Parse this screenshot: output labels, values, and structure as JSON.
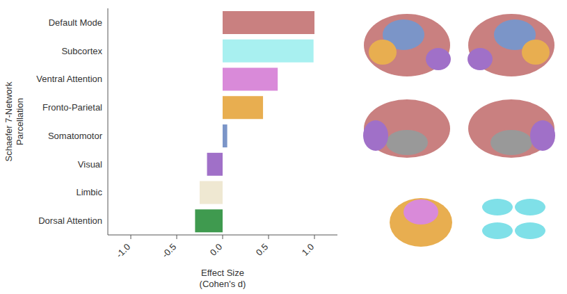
{
  "chart_data": {
    "type": "bar",
    "orientation": "horizontal",
    "x_label": "Effect Size (Cohen's d)",
    "y_label": "Schaefer 7-Network Parcellation",
    "categories": [
      "Default Mode",
      "Subcortex",
      "Ventral Attention",
      "Fronto-Parietal",
      "Somatomotor",
      "Visual",
      "Limbic",
      "Dorsal Attention"
    ],
    "values": [
      1.0,
      0.99,
      0.6,
      0.44,
      0.05,
      -0.17,
      -0.25,
      -0.3
    ],
    "colors": [
      "#c98080",
      "#a8f0f0",
      "#d98ad9",
      "#e8ae50",
      "#7b95c8",
      "#a070c8",
      "#efe8d2",
      "#3f9a4f"
    ],
    "xlim": [
      -1.25,
      1.25
    ],
    "xticks": [
      {
        "value": -1.0,
        "label": "-1.0"
      },
      {
        "value": -0.5,
        "label": "-0.5"
      },
      {
        "value": 0,
        "label": "0.0"
      },
      {
        "value": 0.5,
        "label": "0.5"
      },
      {
        "value": 1.0,
        "label": "1.0"
      }
    ],
    "grid": false
  }
}
